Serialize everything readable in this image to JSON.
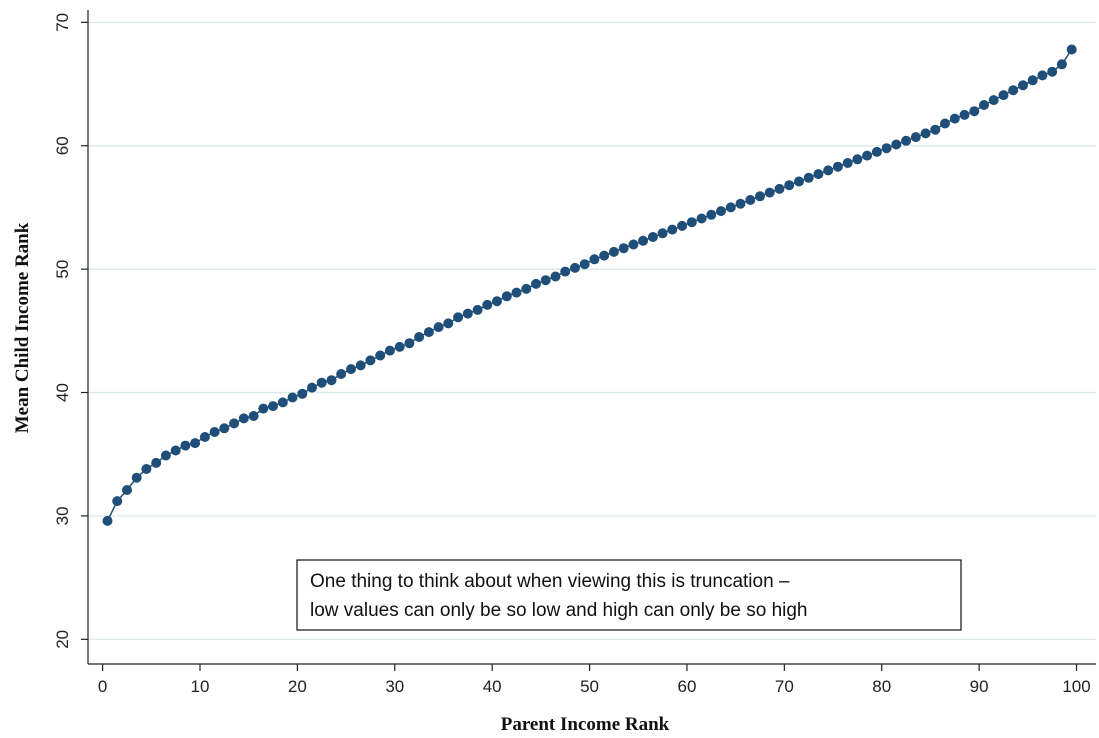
{
  "chart_data": {
    "type": "line",
    "xlabel": "Parent Income Rank",
    "ylabel": "Mean Child Income Rank",
    "xlim": [
      -1.5,
      102
    ],
    "ylim": [
      18,
      71
    ],
    "xticks": [
      0,
      10,
      20,
      30,
      40,
      50,
      60,
      70,
      80,
      90,
      100
    ],
    "yticks": [
      20,
      30,
      40,
      50,
      60,
      70
    ],
    "grid": "horizontal",
    "marker": "filled-circle",
    "colors": {
      "series": "#1f4e79",
      "grid": "#d9e6ea",
      "axis": "#222222"
    },
    "x": [
      0.5,
      1.5,
      2.5,
      3.5,
      4.5,
      5.5,
      6.5,
      7.5,
      8.5,
      9.5,
      10.5,
      11.5,
      12.5,
      13.5,
      14.5,
      15.5,
      16.5,
      17.5,
      18.5,
      19.5,
      20.5,
      21.5,
      22.5,
      23.5,
      24.5,
      25.5,
      26.5,
      27.5,
      28.5,
      29.5,
      30.5,
      31.5,
      32.5,
      33.5,
      34.5,
      35.5,
      36.5,
      37.5,
      38.5,
      39.5,
      40.5,
      41.5,
      42.5,
      43.5,
      44.5,
      45.5,
      46.5,
      47.5,
      48.5,
      49.5,
      50.5,
      51.5,
      52.5,
      53.5,
      54.5,
      55.5,
      56.5,
      57.5,
      58.5,
      59.5,
      60.5,
      61.5,
      62.5,
      63.5,
      64.5,
      65.5,
      66.5,
      67.5,
      68.5,
      69.5,
      70.5,
      71.5,
      72.5,
      73.5,
      74.5,
      75.5,
      76.5,
      77.5,
      78.5,
      79.5,
      80.5,
      81.5,
      82.5,
      83.5,
      84.5,
      85.5,
      86.5,
      87.5,
      88.5,
      89.5,
      90.5,
      91.5,
      92.5,
      93.5,
      94.5,
      95.5,
      96.5,
      97.5,
      98.5,
      99.5
    ],
    "y": [
      29.6,
      31.2,
      32.1,
      33.1,
      33.8,
      34.3,
      34.9,
      35.3,
      35.7,
      35.9,
      36.4,
      36.8,
      37.1,
      37.5,
      37.9,
      38.1,
      38.7,
      38.9,
      39.2,
      39.6,
      39.9,
      40.4,
      40.8,
      41.0,
      41.5,
      41.9,
      42.2,
      42.6,
      43.0,
      43.4,
      43.7,
      44.0,
      44.5,
      44.9,
      45.3,
      45.6,
      46.1,
      46.4,
      46.7,
      47.1,
      47.4,
      47.8,
      48.1,
      48.4,
      48.8,
      49.1,
      49.4,
      49.8,
      50.1,
      50.4,
      50.8,
      51.1,
      51.4,
      51.7,
      52.0,
      52.3,
      52.6,
      52.9,
      53.2,
      53.5,
      53.8,
      54.1,
      54.4,
      54.7,
      55.0,
      55.3,
      55.6,
      55.9,
      56.2,
      56.5,
      56.8,
      57.1,
      57.4,
      57.7,
      58.0,
      58.3,
      58.6,
      58.9,
      59.2,
      59.5,
      59.8,
      60.1,
      60.4,
      60.7,
      61.0,
      61.3,
      61.8,
      62.2,
      62.5,
      62.8,
      63.3,
      63.7,
      64.1,
      64.5,
      64.9,
      65.3,
      65.7,
      66.0,
      66.6,
      67.8
    ]
  },
  "annotation": {
    "line1": "One thing to think about when viewing this is truncation –",
    "line2": "low values can only be so low and high can only be so high"
  }
}
